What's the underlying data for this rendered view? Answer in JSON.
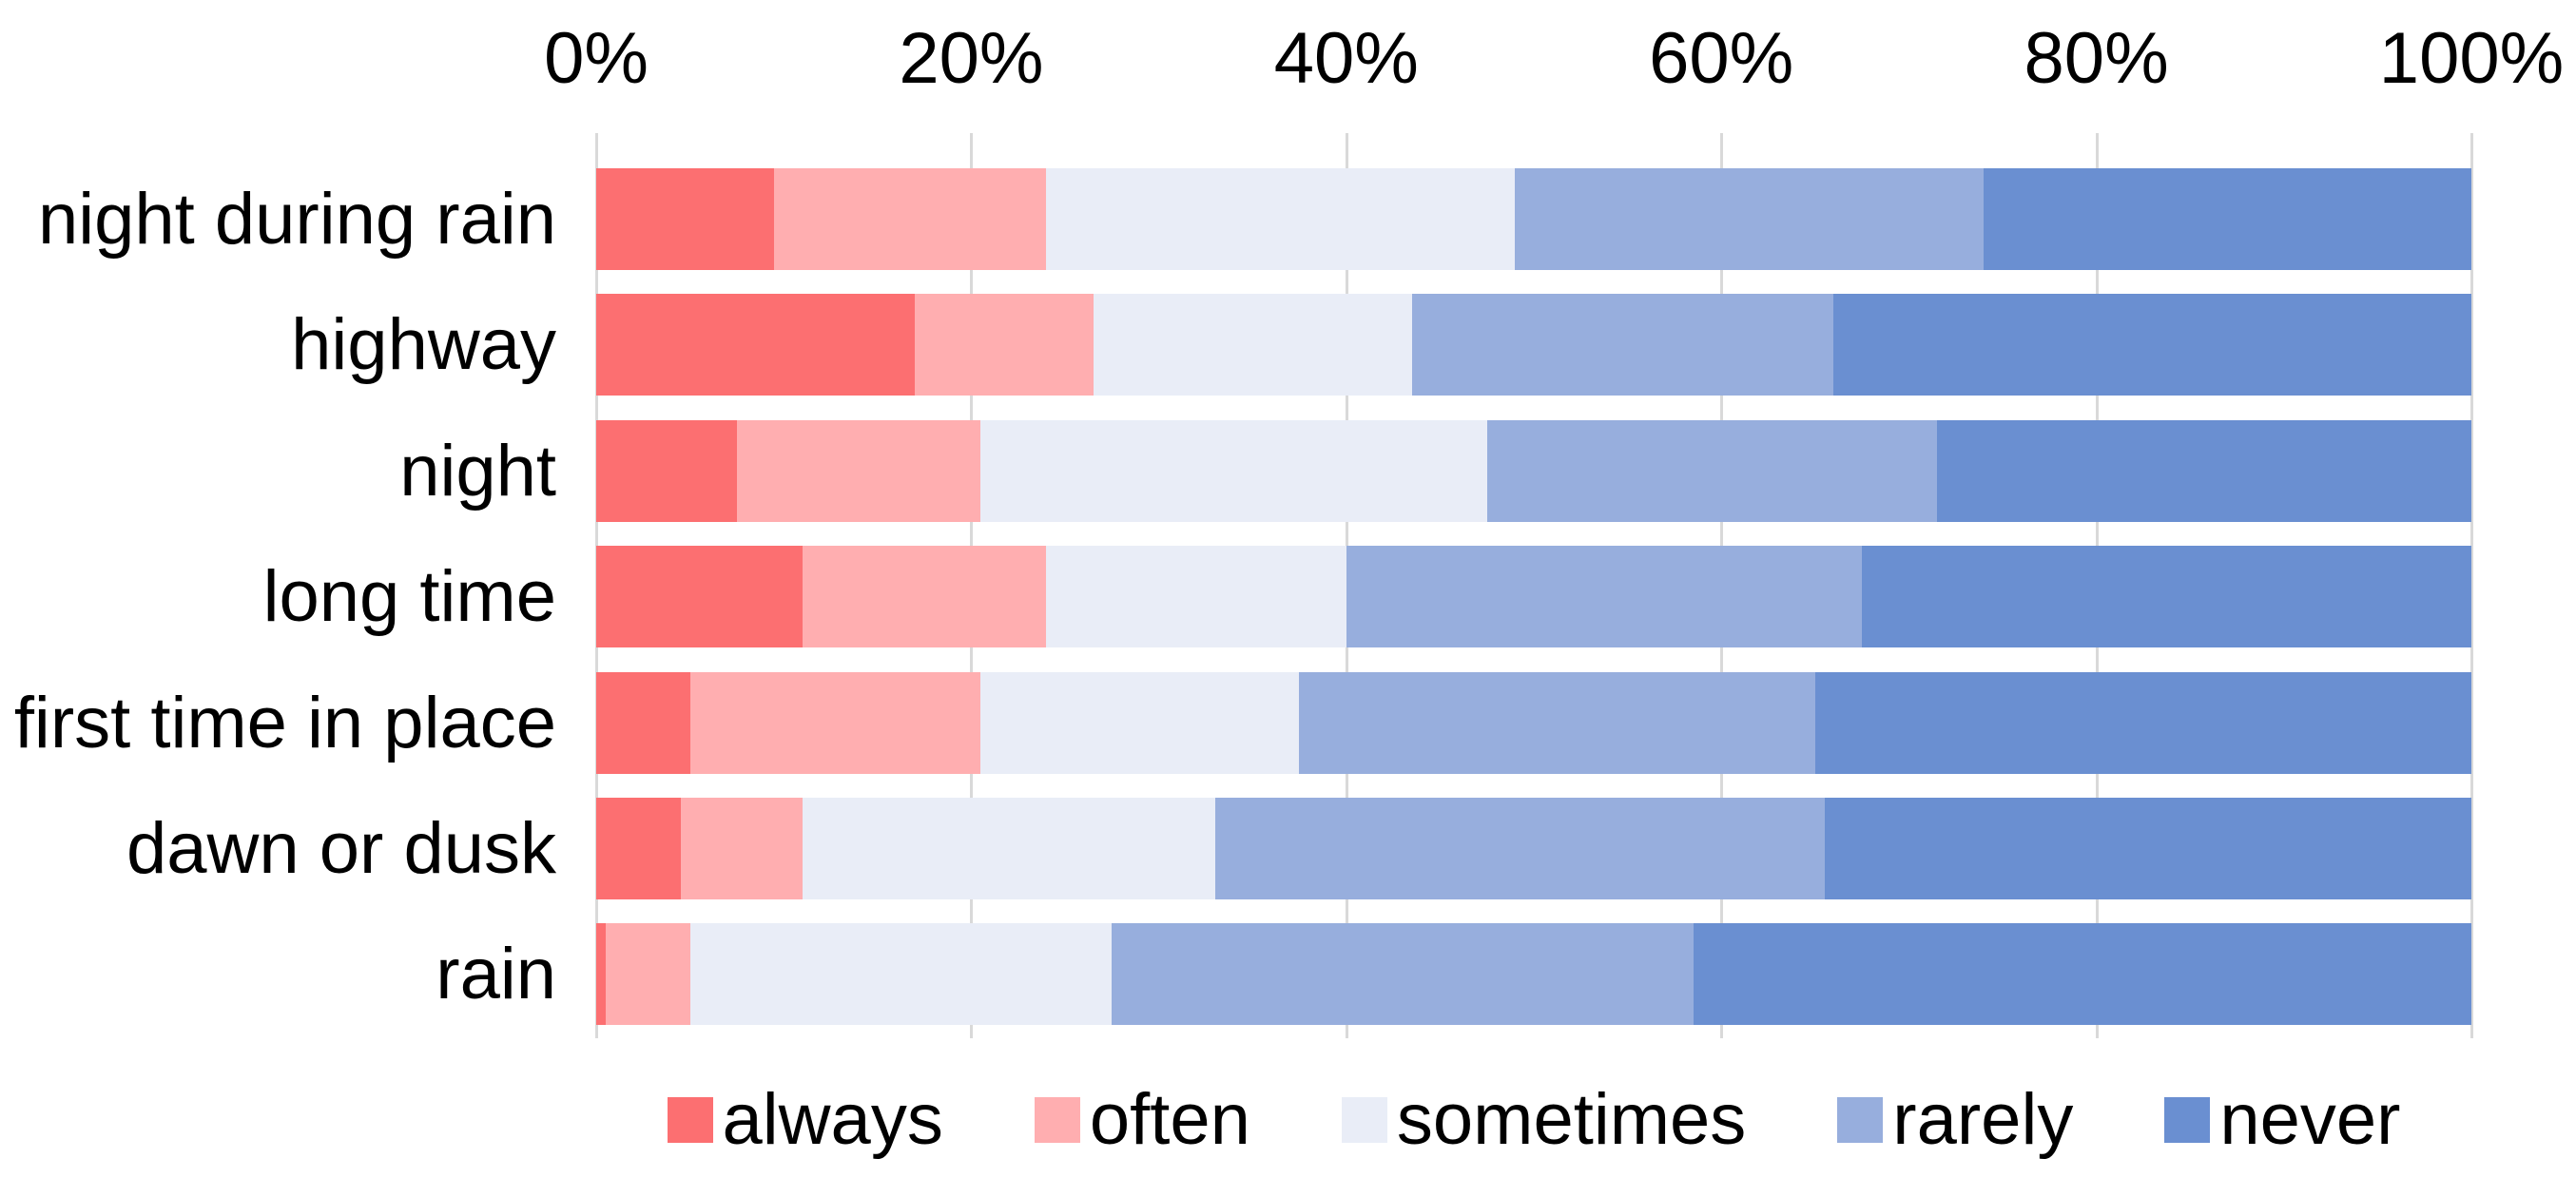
{
  "chart_data": {
    "type": "bar",
    "orientation": "horizontal",
    "stacked": true,
    "unit": "percent",
    "title": "",
    "categories": [
      "night during rain",
      "highway",
      "night",
      "long time",
      "first time in place",
      "dawn or dusk",
      "rain"
    ],
    "series": [
      {
        "name": "always",
        "color": "#fc6f71",
        "values": [
          9.5,
          17,
          7.5,
          11,
          5,
          4.5,
          0.5
        ]
      },
      {
        "name": "often",
        "color": "#ffaeb0",
        "values": [
          14.5,
          9.5,
          13,
          13,
          15.5,
          6.5,
          4.5
        ]
      },
      {
        "name": "sometimes",
        "color": "#e9edf7",
        "values": [
          25,
          17,
          27,
          16,
          17,
          22,
          22.5
        ]
      },
      {
        "name": "rarely",
        "color": "#97aedd",
        "values": [
          25,
          22.5,
          24,
          27.5,
          27.5,
          32.5,
          31
        ]
      },
      {
        "name": "never",
        "color": "#6a8fd1",
        "values": [
          26,
          34,
          28.5,
          32.5,
          35,
          34.5,
          41.5
        ]
      }
    ],
    "x_ticks": [
      "0%",
      "20%",
      "40%",
      "60%",
      "80%",
      "100%"
    ],
    "xlim": [
      0,
      100
    ],
    "grid": true,
    "legend_position": "bottom"
  },
  "colors": {
    "background": "#ffffff",
    "gridline": "#d9d9d9",
    "text": "#000000"
  }
}
